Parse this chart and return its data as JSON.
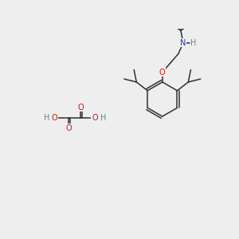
{
  "background_color": "#eeeeee",
  "fig_width": 3.0,
  "fig_height": 3.0,
  "dpi": 100,
  "colors": {
    "C": "#303030",
    "O": "#cc1111",
    "N": "#2233cc",
    "H": "#558888",
    "bond": "#303030"
  },
  "font_size_atom": 7.0
}
